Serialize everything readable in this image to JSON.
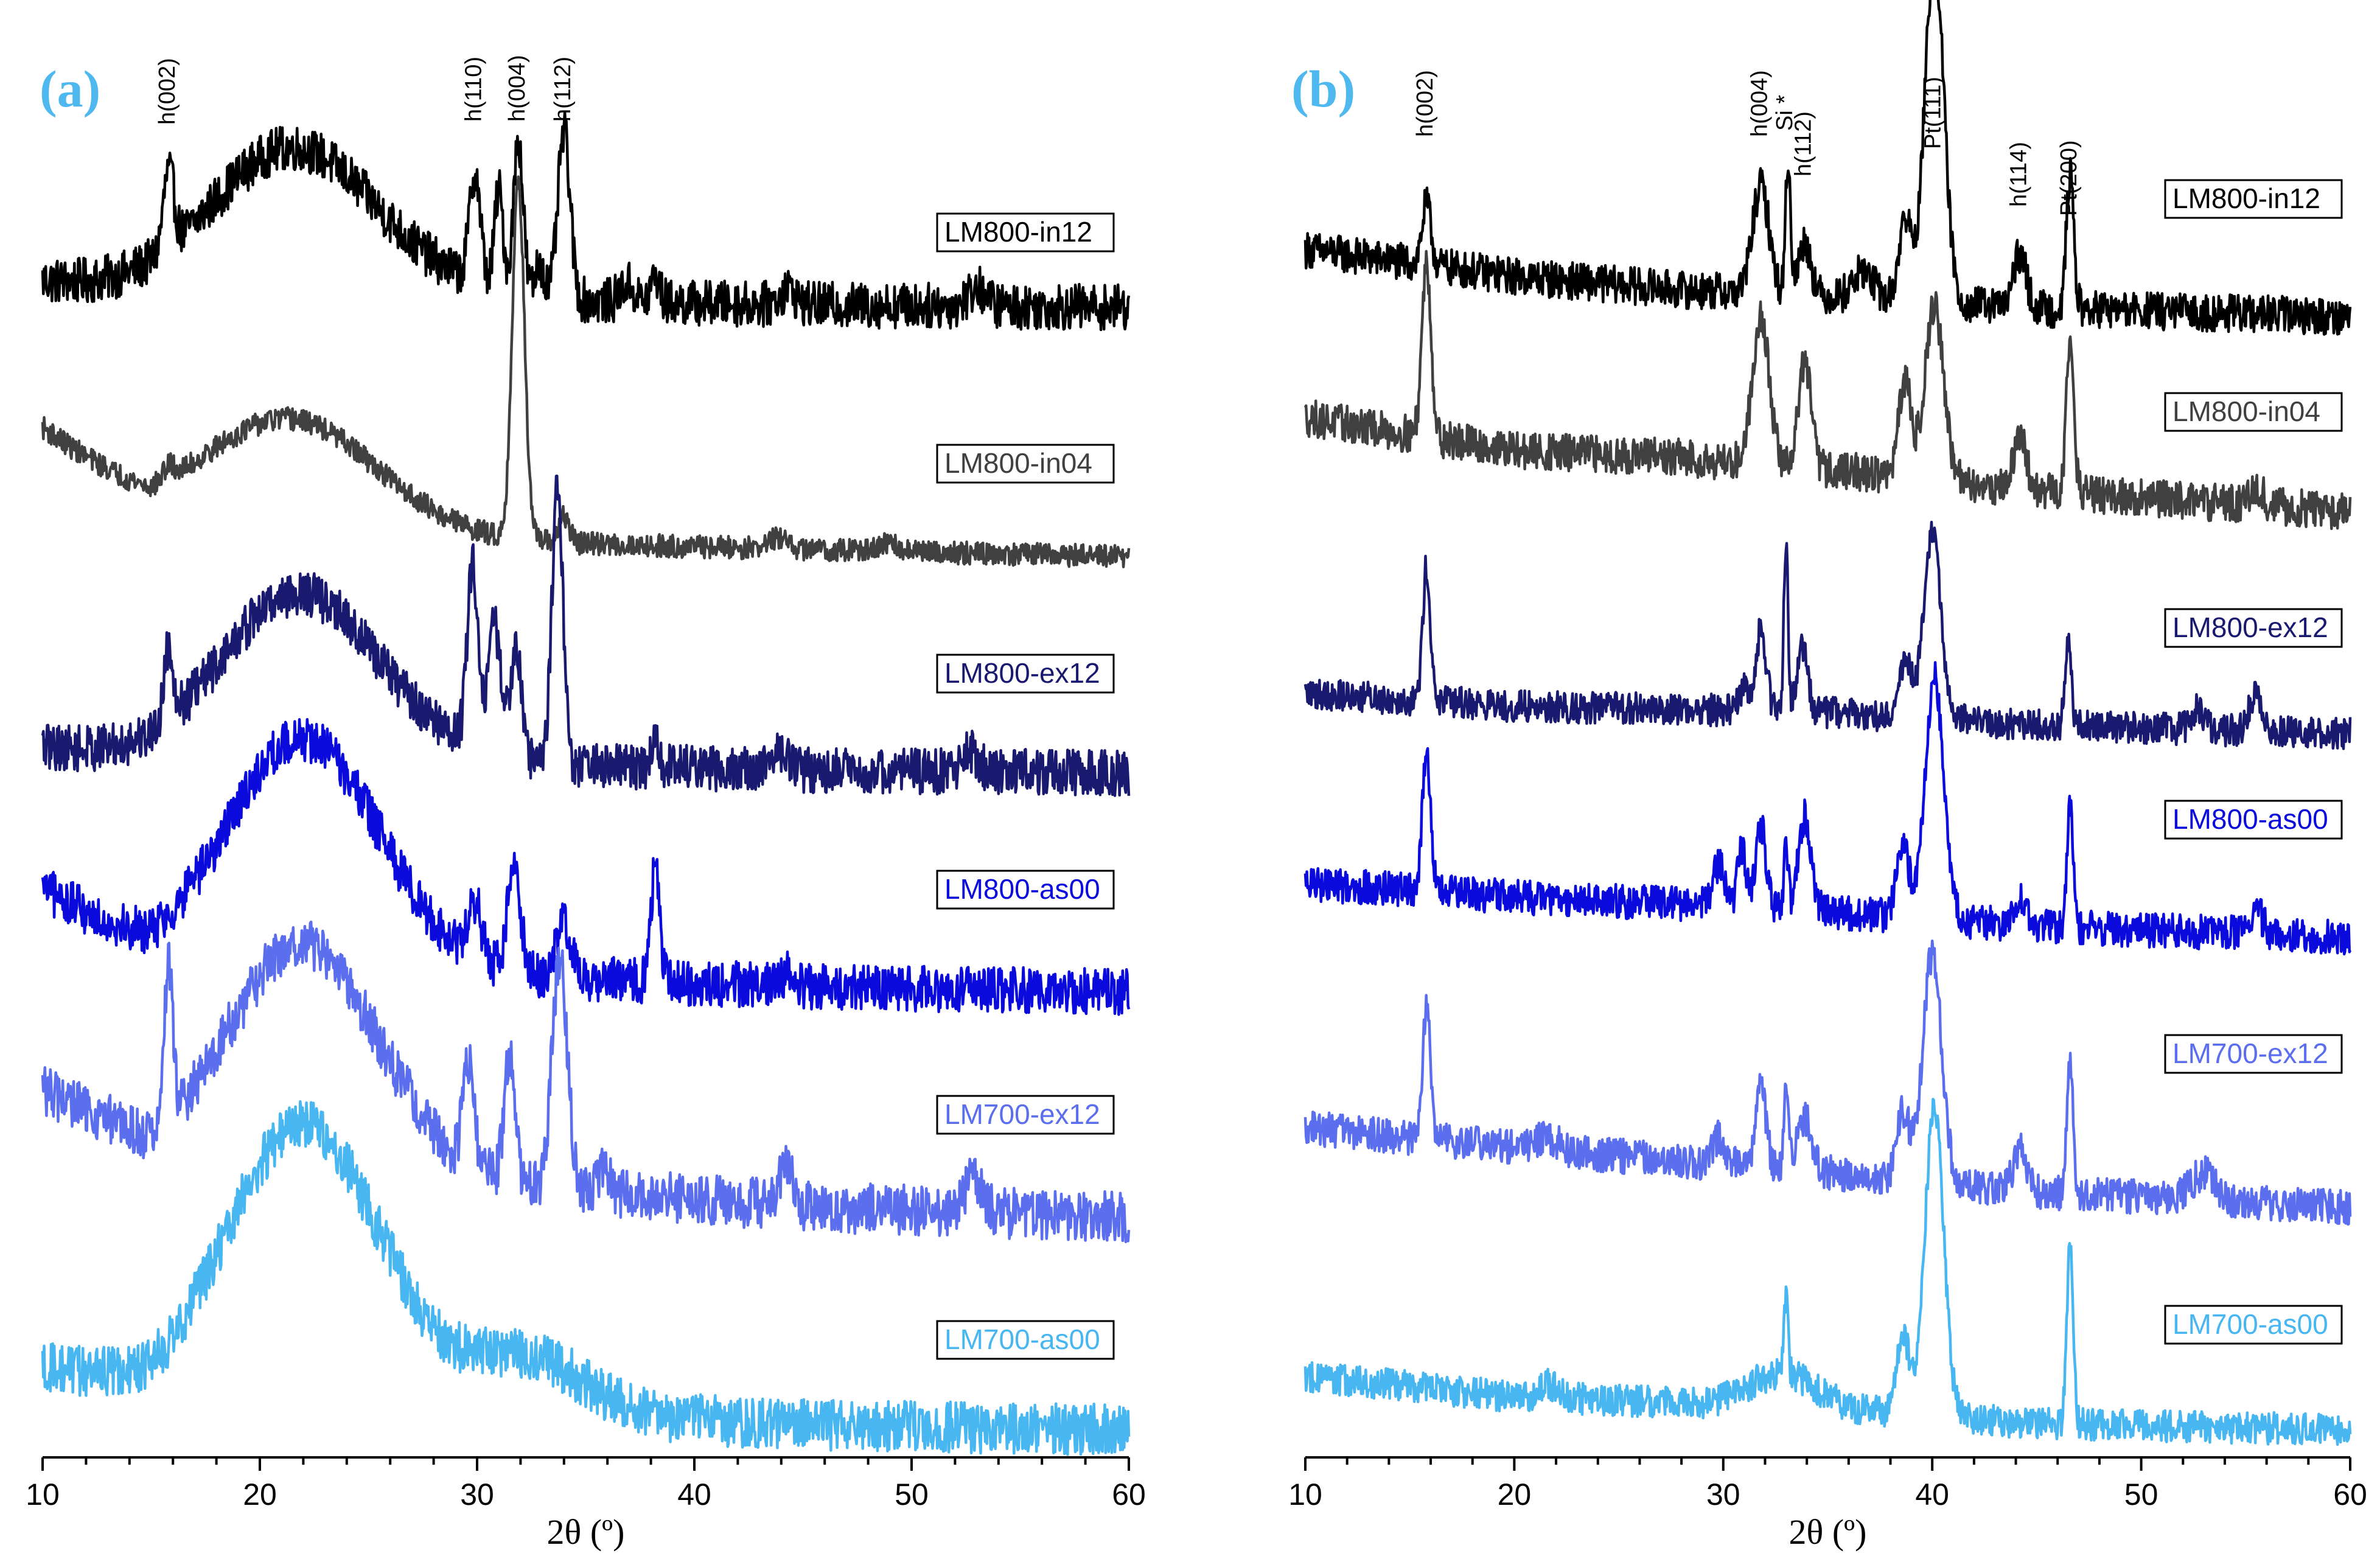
{
  "chart_data": [
    {
      "panel_label": "(a)",
      "type": "line",
      "xlabel": "2θ (º)",
      "xlim": [
        10,
        60
      ],
      "x_ticks": [
        10,
        20,
        30,
        40,
        50,
        60
      ],
      "y_axis": "none (stacked offset XRD patterns, arbitrary intensity)",
      "peak_labels": [
        {
          "text": "h(002)",
          "x": 15.8
        },
        {
          "text": "h(110)",
          "x": 29.9
        },
        {
          "text": "h(004)",
          "x": 31.9
        },
        {
          "text": "h(112)",
          "x": 34.0
        }
      ],
      "series": [
        {
          "name": "LM800-in12",
          "color": "#000000",
          "noise": 0.9,
          "baseline": [
            [
              10,
              1.0
            ],
            [
              13,
              0.7
            ],
            [
              15,
              0.5
            ],
            [
              30,
              0.6
            ],
            [
              35,
              0.25
            ],
            [
              45,
              0.1
            ],
            [
              60,
              0.0
            ]
          ],
          "humps": [
            {
              "x": 21.5,
              "h": 5.7,
              "w": 3.8
            }
          ],
          "peaks": [
            [
              15.8,
              3.0,
              0.25
            ],
            [
              29.9,
              4.2,
              0.25
            ],
            [
              31.0,
              3.8,
              0.2
            ],
            [
              31.9,
              6.0,
              0.22
            ],
            [
              32.9,
              1.3,
              0.2
            ],
            [
              34.0,
              6.5,
              0.28
            ],
            [
              36.9,
              0.7,
              0.3
            ],
            [
              38.2,
              1.0,
              0.2
            ],
            [
              44.3,
              0.6,
              0.35
            ],
            [
              53.0,
              0.7,
              0.4
            ]
          ]
        },
        {
          "name": "LM800-in04",
          "color": "#404040",
          "noise": 0.45,
          "baseline": [
            [
              10,
              5.0
            ],
            [
              13,
              3.0
            ],
            [
              15,
              1.6
            ],
            [
              25,
              0.8
            ],
            [
              30,
              0.6
            ],
            [
              40,
              0.4
            ],
            [
              60,
              0.0
            ]
          ],
          "humps": [
            {
              "x": 21.5,
              "h": 4.3,
              "w": 4.0
            }
          ],
          "peaks": [
            [
              15.8,
              0.5,
              0.25
            ],
            [
              31.9,
              14.0,
              0.28
            ],
            [
              34.0,
              1.0,
              0.25
            ],
            [
              43.8,
              0.4,
              0.4
            ],
            [
              49.0,
              0.3,
              0.4
            ]
          ]
        },
        {
          "name": "LM800-ex12",
          "color": "#191970",
          "noise": 0.9,
          "baseline": [
            [
              10,
              1.0
            ],
            [
              13,
              0.7
            ],
            [
              15,
              0.5
            ],
            [
              30,
              0.6
            ],
            [
              35,
              0.25
            ],
            [
              45,
              0.1
            ],
            [
              60,
              0.0
            ]
          ],
          "humps": [
            {
              "x": 21.8,
              "h": 6.5,
              "w": 3.6
            }
          ],
          "peaks": [
            [
              15.8,
              2.8,
              0.22
            ],
            [
              29.8,
              7.0,
              0.25
            ],
            [
              30.8,
              5.0,
              0.3
            ],
            [
              31.8,
              4.5,
              0.25
            ],
            [
              33.7,
              11.0,
              0.25
            ],
            [
              38.2,
              0.9,
              0.2
            ],
            [
              44.0,
              0.8,
              0.35
            ],
            [
              52.7,
              0.8,
              0.35
            ]
          ]
        },
        {
          "name": "LM800-as00",
          "color": "#0a0adc",
          "noise": 0.9,
          "baseline": [
            [
              10,
              4.0
            ],
            [
              13,
              2.5
            ],
            [
              15,
              1.2
            ],
            [
              25,
              0.8
            ],
            [
              35,
              0.5
            ],
            [
              45,
              0.2
            ],
            [
              60,
              0.0
            ]
          ],
          "humps": [
            {
              "x": 22.0,
              "h": 9.0,
              "w": 3.5
            }
          ],
          "peaks": [
            [
              29.9,
              2.2,
              0.3
            ],
            [
              31.7,
              4.0,
              0.3
            ],
            [
              34.0,
              2.2,
              0.35
            ],
            [
              38.2,
              4.5,
              0.2
            ],
            [
              44.3,
              0.5,
              0.35
            ]
          ]
        },
        {
          "name": "LM700-ex12",
          "color": "#5a6eee",
          "noise": 1.0,
          "baseline": [
            [
              10,
              5.0
            ],
            [
              13,
              3.5
            ],
            [
              15,
              2.0
            ],
            [
              25,
              1.5
            ],
            [
              35,
              1.0
            ],
            [
              45,
              0.4
            ],
            [
              60,
              0.0
            ]
          ],
          "humps": [
            {
              "x": 22.0,
              "h": 9.0,
              "w": 3.5
            }
          ],
          "peaks": [
            [
              15.8,
              6.0,
              0.2
            ],
            [
              29.6,
              4.0,
              0.25
            ],
            [
              31.5,
              5.0,
              0.25
            ],
            [
              33.8,
              9.0,
              0.35
            ],
            [
              35.8,
              1.0,
              0.3
            ],
            [
              44.2,
              1.5,
              0.35
            ],
            [
              52.8,
              1.2,
              0.4
            ]
          ]
        },
        {
          "name": "LM700-as00",
          "color": "#48b6f0",
          "noise": 1.0,
          "baseline": [
            [
              10,
              2.5
            ],
            [
              13,
              1.8
            ],
            [
              15,
              1.0
            ],
            [
              30,
              0.9
            ],
            [
              37,
              0.5
            ],
            [
              45,
              0.2
            ],
            [
              60,
              0.0
            ]
          ],
          "humps": [
            {
              "x": 22.0,
              "h": 11.0,
              "w": 3.6
            },
            {
              "x": 32.5,
              "h": 2.0,
              "w": 2.5
            }
          ],
          "peaks": []
        }
      ]
    },
    {
      "panel_label": "(b)",
      "type": "line",
      "xlabel": "2θ (º)",
      "xlim": [
        10,
        60
      ],
      "x_ticks": [
        10,
        20,
        30,
        40,
        50,
        60
      ],
      "y_axis": "none (stacked offset XRD patterns, arbitrary intensity)",
      "peak_labels": [
        {
          "text": "h(002)",
          "x": 15.8
        },
        {
          "text": "h(004)",
          "x": 31.8
        },
        {
          "text": "Si *",
          "x": 33.0
        },
        {
          "text": "h(112)",
          "x": 33.9
        },
        {
          "text": "Pt(111)",
          "x": 40.1
        },
        {
          "text": "h(114)",
          "x": 44.2
        },
        {
          "text": "Pt(200)",
          "x": 46.6
        }
      ],
      "series": [
        {
          "name": "LM800-in12",
          "color": "#000000",
          "noise": 1.4,
          "baseline": [
            [
              10,
              5.0
            ],
            [
              20,
              3.0
            ],
            [
              28,
              2.0
            ],
            [
              35,
              1.5
            ],
            [
              45,
              0.6
            ],
            [
              60,
              0.0
            ]
          ],
          "humps": [],
          "peaks": [
            [
              15.8,
              4.5,
              0.22
            ],
            [
              31.8,
              8.0,
              0.4
            ],
            [
              33.1,
              10.0,
              0.12
            ],
            [
              33.9,
              4.0,
              0.3
            ],
            [
              36.7,
              2.0,
              0.5
            ],
            [
              38.7,
              6.0,
              0.3
            ],
            [
              40.1,
              26.0,
              0.45
            ],
            [
              44.2,
              4.0,
              0.3
            ],
            [
              46.6,
              10.0,
              0.18
            ]
          ]
        },
        {
          "name": "LM800-in04",
          "color": "#404040",
          "noise": 1.4,
          "baseline": [
            [
              10,
              7.0
            ],
            [
              20,
              4.5
            ],
            [
              28,
              4.0
            ],
            [
              36,
              3.0
            ],
            [
              45,
              1.5
            ],
            [
              60,
              0.0
            ]
          ],
          "humps": [],
          "peaks": [
            [
              15.8,
              13.0,
              0.22
            ],
            [
              31.8,
              11.0,
              0.4
            ],
            [
              33.9,
              8.0,
              0.3
            ],
            [
              38.7,
              7.0,
              0.3
            ],
            [
              40.1,
              13.0,
              0.45
            ],
            [
              44.2,
              4.0,
              0.3
            ],
            [
              46.6,
              12.0,
              0.18
            ],
            [
              55.5,
              1.5,
              0.3
            ]
          ]
        },
        {
          "name": "LM800-ex12",
          "color": "#191970",
          "noise": 1.2,
          "baseline": [
            [
              10,
              3.0
            ],
            [
              20,
              2.0
            ],
            [
              28,
              1.8
            ],
            [
              36,
              1.5
            ],
            [
              45,
              0.6
            ],
            [
              60,
              0.0
            ]
          ],
          "humps": [],
          "peaks": [
            [
              15.8,
              10.0,
              0.18
            ],
            [
              31.0,
              2.0,
              0.2
            ],
            [
              31.8,
              6.0,
              0.25
            ],
            [
              33.0,
              13.0,
              0.1
            ],
            [
              33.8,
              5.0,
              0.25
            ],
            [
              38.7,
              4.0,
              0.3
            ],
            [
              40.0,
              14.0,
              0.4
            ],
            [
              46.5,
              6.0,
              0.15
            ],
            [
              52.7,
              1.5,
              0.3
            ],
            [
              55.5,
              3.0,
              0.3
            ]
          ]
        },
        {
          "name": "LM800-as00",
          "color": "#0a0adc",
          "noise": 1.3,
          "baseline": [
            [
              10,
              4.0
            ],
            [
              20,
              3.0
            ],
            [
              28,
              2.5
            ],
            [
              36,
              1.8
            ],
            [
              45,
              0.8
            ],
            [
              60,
              0.0
            ]
          ],
          "humps": [],
          "peaks": [
            [
              15.8,
              10.0,
              0.2
            ],
            [
              29.8,
              3.0,
              0.3
            ],
            [
              30.9,
              4.5,
              0.2
            ],
            [
              31.8,
              6.0,
              0.25
            ],
            [
              33.0,
              5.0,
              0.1
            ],
            [
              33.9,
              7.0,
              0.3
            ],
            [
              38.6,
              5.0,
              0.3
            ],
            [
              40.1,
              18.0,
              0.45
            ],
            [
              44.2,
              2.0,
              0.3
            ],
            [
              46.6,
              9.0,
              0.15
            ],
            [
              55.5,
              1.8,
              0.3
            ]
          ]
        },
        {
          "name": "LM700-ex12",
          "color": "#5a6eee",
          "noise": 1.3,
          "baseline": [
            [
              10,
              6.0
            ],
            [
              20,
              4.5
            ],
            [
              28,
              3.5
            ],
            [
              36,
              2.5
            ],
            [
              45,
              1.2
            ],
            [
              60,
              0.0
            ]
          ],
          "humps": [],
          "peaks": [
            [
              15.8,
              10.0,
              0.18
            ],
            [
              21.6,
              1.0,
              0.5
            ],
            [
              29.8,
              2.0,
              0.3
            ],
            [
              31.8,
              6.0,
              0.25
            ],
            [
              33.0,
              7.0,
              0.1
            ],
            [
              33.9,
              4.0,
              0.35
            ],
            [
              38.6,
              5.0,
              0.3
            ],
            [
              40.0,
              17.0,
              0.45
            ],
            [
              44.2,
              3.0,
              0.3
            ],
            [
              46.6,
              10.0,
              0.15
            ],
            [
              53.0,
              2.0,
              0.6
            ]
          ]
        },
        {
          "name": "LM700-as00",
          "color": "#48b6f0",
          "noise": 1.2,
          "baseline": [
            [
              10,
              4.0
            ],
            [
              20,
              2.5
            ],
            [
              28,
              2.0
            ],
            [
              36,
              1.5
            ],
            [
              45,
              0.5
            ],
            [
              60,
              0.0
            ]
          ],
          "humps": [
            {
              "x": 32.8,
              "h": 2.5,
              "w": 1.6
            }
          ],
          "peaks": [
            [
              21.7,
              1.0,
              0.5
            ],
            [
              33.0,
              6.0,
              0.1
            ],
            [
              38.6,
              6.0,
              0.3
            ],
            [
              40.1,
              23.0,
              0.45
            ],
            [
              46.6,
              14.0,
              0.15
            ]
          ]
        }
      ]
    }
  ]
}
